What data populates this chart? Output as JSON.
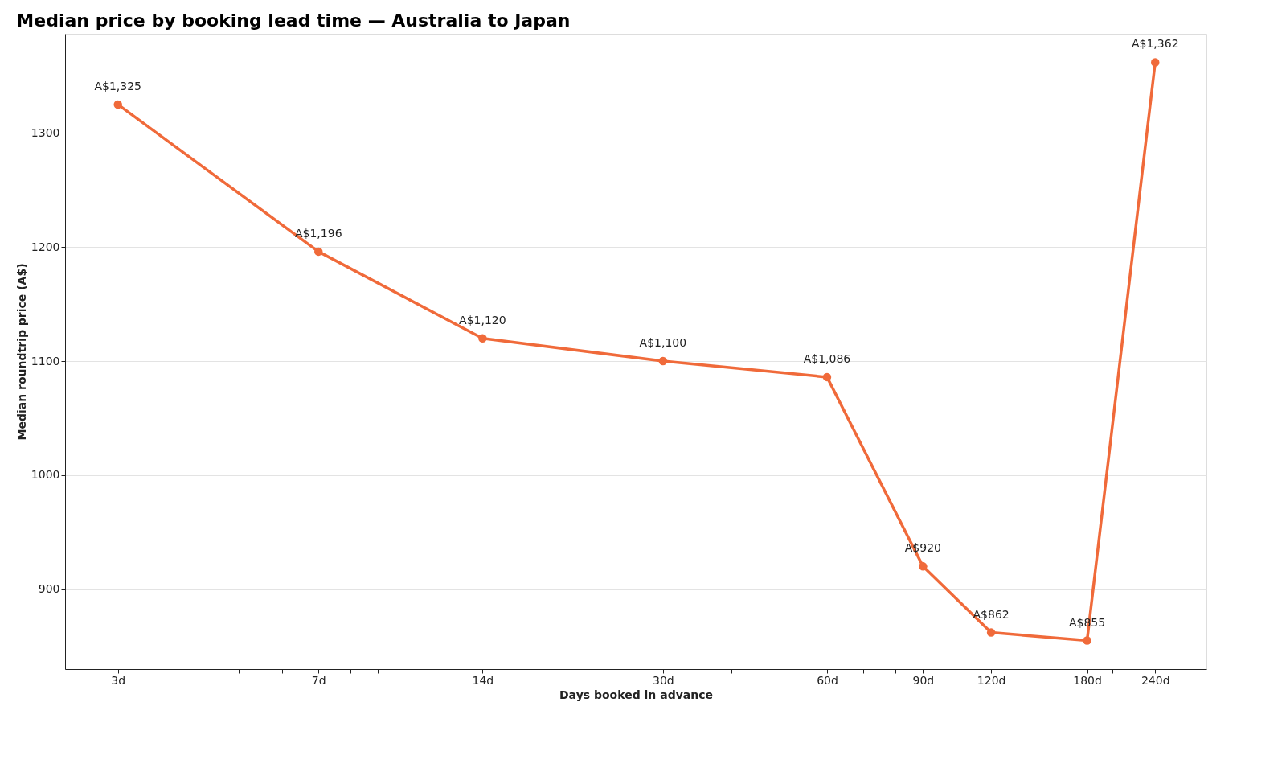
{
  "chart_data": {
    "type": "line",
    "title": "Median price by booking lead time — Australia to Japan",
    "xlabel": "Days booked in advance",
    "ylabel": "Median roundtrip price (A$)",
    "x": [
      3,
      7,
      14,
      30,
      60,
      90,
      120,
      180,
      240
    ],
    "series": [
      {
        "color": "#f06a3a",
        "values": [
          1325,
          1196,
          1120,
          1100,
          1086,
          920,
          862,
          855,
          1362
        ],
        "value_labels": [
          "A$1,325",
          "A$1,196",
          "A$1,120",
          "A$1,100",
          "A$1,086",
          "A$920",
          "A$862",
          "A$855",
          "A$1,362"
        ]
      }
    ],
    "log": "x",
    "xlim": [
      2.4,
      298
    ],
    "ylim": [
      830,
      1387
    ],
    "xticks": [
      {
        "value": 3,
        "label": "3d"
      },
      {
        "value": 4,
        "label": null
      },
      {
        "value": 5,
        "label": null
      },
      {
        "value": 6,
        "label": null
      },
      {
        "value": 7,
        "label": "7d"
      },
      {
        "value": 8,
        "label": null
      },
      {
        "value": 9,
        "label": null
      },
      {
        "value": 14,
        "label": "14d"
      },
      {
        "value": 20,
        "label": null
      },
      {
        "value": 30,
        "label": "30d"
      },
      {
        "value": 40,
        "label": null
      },
      {
        "value": 50,
        "label": null
      },
      {
        "value": 60,
        "label": "60d"
      },
      {
        "value": 70,
        "label": null
      },
      {
        "value": 80,
        "label": null
      },
      {
        "value": 90,
        "label": "90d"
      },
      {
        "value": 120,
        "label": "120d"
      },
      {
        "value": 180,
        "label": "180d"
      },
      {
        "value": 200,
        "label": null
      },
      {
        "value": 240,
        "label": "240d"
      }
    ],
    "yticks": [
      900,
      1000,
      1100,
      1200,
      1300
    ],
    "grid": "y",
    "marker": "circle",
    "line_style": "solid"
  }
}
